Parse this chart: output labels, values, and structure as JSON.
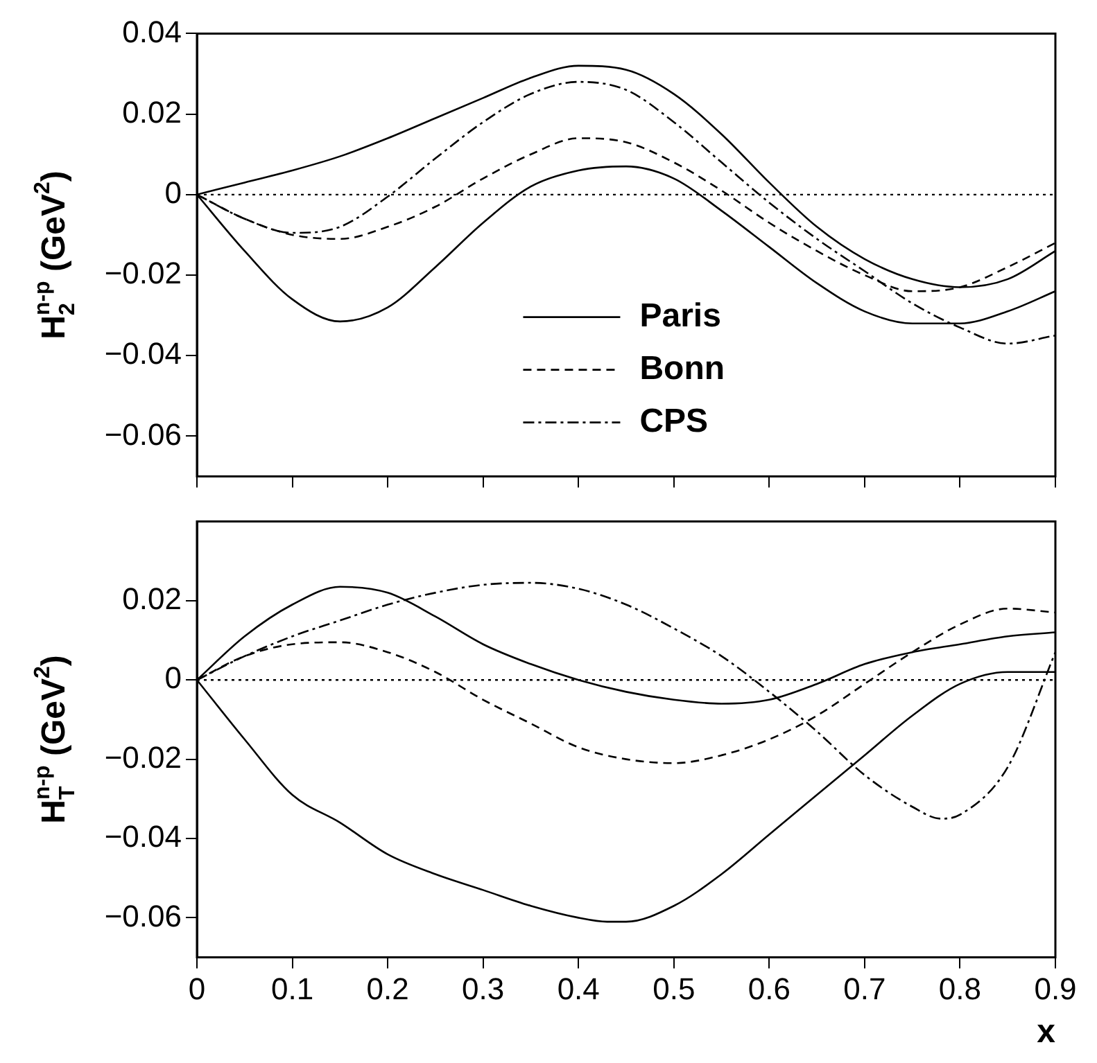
{
  "chart_data": [
    {
      "type": "line",
      "ylabel": "H$_{2}$$^{n-p}$ (GeV$^{2}$)",
      "x": [
        0,
        0.05,
        0.1,
        0.15,
        0.2,
        0.25,
        0.3,
        0.35,
        0.4,
        0.45,
        0.5,
        0.55,
        0.6,
        0.65,
        0.7,
        0.75,
        0.8,
        0.85,
        0.9
      ],
      "xlim": [
        0,
        0.9
      ],
      "xticks": [
        0,
        0.1,
        0.2,
        0.3,
        0.4,
        0.5,
        0.6,
        0.7,
        0.8,
        0.9
      ],
      "ylim": [
        -0.07,
        0.04
      ],
      "yticks": [
        -0.06,
        -0.04,
        -0.02,
        0,
        0.02,
        0.04
      ],
      "tick_labels": "y",
      "grid": false,
      "legend": "bottom",
      "marker": "none",
      "ref_lines": [
        {
          "axis": "y",
          "value": 0,
          "color": "#000000",
          "line_style": "dotted"
        }
      ],
      "series": [
        {
          "name": "Paris",
          "color": "#000000",
          "line_style": "solid",
          "values": [
            0,
            0.003,
            0.006,
            0.0095,
            0.014,
            0.019,
            0.024,
            0.029,
            0.032,
            0.031,
            0.025,
            0.015,
            0.003,
            -0.008,
            -0.016,
            -0.021,
            -0.023,
            -0.021,
            -0.014
          ]
        },
        {
          "name": "Bonn",
          "color": "#000000",
          "line_style": "dashed",
          "values": [
            0,
            -0.006,
            -0.01,
            -0.011,
            -0.008,
            -0.003,
            0.004,
            0.01,
            0.014,
            0.013,
            0.008,
            0.001,
            -0.007,
            -0.014,
            -0.02,
            -0.024,
            -0.023,
            -0.018,
            -0.012
          ]
        },
        {
          "name": "CPS",
          "color": "#000000",
          "line_style": "dashdot",
          "values": [
            0,
            -0.006,
            -0.0095,
            -0.008,
            -0.0005,
            0.009,
            0.018,
            0.025,
            0.028,
            0.026,
            0.018,
            0.008,
            -0.002,
            -0.011,
            -0.019,
            -0.027,
            -0.033,
            -0.037,
            -0.035
          ]
        },
        {
          "color": "#000000",
          "line_style": "solid",
          "values": [
            0,
            -0.014,
            -0.026,
            -0.0315,
            -0.028,
            -0.018,
            -0.007,
            0.002,
            0.006,
            0.007,
            0.004,
            -0.004,
            -0.013,
            -0.022,
            -0.029,
            -0.032,
            -0.032,
            -0.029,
            -0.024
          ]
        }
      ]
    },
    {
      "type": "line",
      "ylabel": "H$_{T}$$^{n-p}$ (GeV$^{2}$)",
      "xlabel": "x",
      "x": [
        0,
        0.05,
        0.1,
        0.15,
        0.2,
        0.25,
        0.3,
        0.35,
        0.4,
        0.45,
        0.5,
        0.55,
        0.6,
        0.65,
        0.7,
        0.75,
        0.8,
        0.85,
        0.9
      ],
      "xlim": [
        0,
        0.9
      ],
      "xticks": [
        0,
        0.1,
        0.2,
        0.3,
        0.4,
        0.5,
        0.6,
        0.7,
        0.8,
        0.9
      ],
      "ylim": [
        -0.07,
        0.04
      ],
      "yticks": [
        -0.06,
        -0.04,
        -0.02,
        0,
        0.02
      ],
      "grid": false,
      "marker": "none",
      "ref_lines": [
        {
          "axis": "y",
          "value": 0,
          "color": "#000000",
          "line_style": "dotted"
        }
      ],
      "series": [
        {
          "color": "#000000",
          "line_style": "solid",
          "values": [
            0,
            0.011,
            0.019,
            0.0235,
            0.022,
            0.016,
            0.009,
            0.004,
            0,
            -0.003,
            -0.005,
            -0.006,
            -0.005,
            -0.001,
            0.004,
            0.007,
            0.009,
            0.011,
            0.012
          ]
        },
        {
          "color": "#000000",
          "line_style": "dashed",
          "values": [
            0,
            0.006,
            0.009,
            0.0095,
            0.007,
            0.002,
            -0.005,
            -0.011,
            -0.017,
            -0.02,
            -0.021,
            -0.019,
            -0.015,
            -0.009,
            -0.001,
            0.007,
            0.014,
            0.018,
            0.017
          ]
        },
        {
          "color": "#000000",
          "line_style": "dashdot",
          "x": [
            0,
            0.05,
            0.1,
            0.15,
            0.2,
            0.25,
            0.3,
            0.35,
            0.4,
            0.45,
            0.5,
            0.55,
            0.6,
            0.65,
            0.7,
            0.75,
            0.78,
            0.8,
            0.85,
            0.9
          ],
          "values": [
            0,
            0.006,
            0.011,
            0.015,
            0.019,
            0.022,
            0.024,
            0.0245,
            0.023,
            0.019,
            0.013,
            0.006,
            -0.003,
            -0.013,
            -0.024,
            -0.032,
            -0.035,
            -0.034,
            -0.022,
            0.007
          ]
        },
        {
          "color": "#000000",
          "line_style": "solid",
          "x": [
            0,
            0.05,
            0.1,
            0.15,
            0.2,
            0.25,
            0.3,
            0.35,
            0.4,
            0.43,
            0.45,
            0.5,
            0.55,
            0.6,
            0.65,
            0.7,
            0.75,
            0.8,
            0.85,
            0.9
          ],
          "values": [
            0,
            -0.015,
            -0.029,
            -0.036,
            -0.044,
            -0.049,
            -0.053,
            -0.057,
            -0.06,
            -0.061,
            -0.061,
            -0.057,
            -0.049,
            -0.039,
            -0.029,
            -0.019,
            -0.009,
            -0.001,
            0.002,
            0.002
          ]
        }
      ]
    }
  ]
}
